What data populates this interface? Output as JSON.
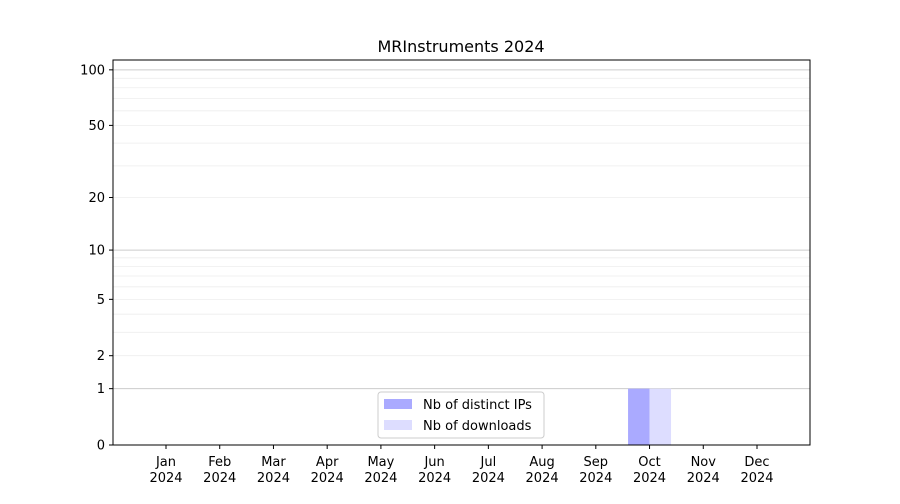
{
  "chart_data": {
    "type": "bar",
    "title": "MRInstruments 2024",
    "xlabel": "",
    "ylabel": "",
    "yscale": "log(1+y)",
    "ylim": [
      0,
      113
    ],
    "yticks": [
      0,
      1,
      2,
      5,
      10,
      20,
      50,
      100
    ],
    "grid": true,
    "legend_position": "lower center",
    "categories": [
      "Jan\n2024",
      "Feb\n2024",
      "Mar\n2024",
      "Apr\n2024",
      "May\n2024",
      "Jun\n2024",
      "Jul\n2024",
      "Aug\n2024",
      "Sep\n2024",
      "Oct\n2024",
      "Nov\n2024",
      "Dec\n2024"
    ],
    "series": [
      {
        "name": "Nb of distinct IPs",
        "color": "#aaaaff",
        "values": [
          0,
          0,
          0,
          0,
          0,
          0,
          0,
          0,
          0,
          1,
          0,
          0
        ]
      },
      {
        "name": "Nb of downloads",
        "color": "#ddddff",
        "values": [
          0,
          0,
          0,
          0,
          0,
          0,
          0,
          0,
          0,
          1,
          0,
          0
        ]
      }
    ]
  }
}
